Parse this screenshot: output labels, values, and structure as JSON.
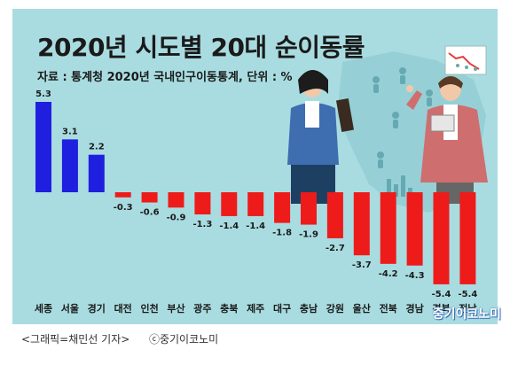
{
  "header": {
    "title": "2020년 시도별 20대 순이동률",
    "subtitle": "자료 : 통계청 2020년 국내인구이동통계, 단위 : %"
  },
  "colors": {
    "background": "#a9dce0",
    "positive": "#1f1fe0",
    "negative": "#ee1b1b"
  },
  "chart_data": {
    "type": "bar",
    "title": "2020년 시도별 20대 순이동률",
    "subtitle": "자료 : 통계청 2020년 국내인구이동통계, 단위 : %",
    "categories": [
      "세종",
      "서울",
      "경기",
      "대전",
      "인천",
      "부산",
      "광주",
      "충북",
      "제주",
      "대구",
      "충남",
      "강원",
      "울산",
      "전북",
      "경남",
      "경북",
      "전남"
    ],
    "values": [
      5.3,
      3.1,
      2.2,
      -0.3,
      -0.6,
      -0.9,
      -1.3,
      -1.4,
      -1.4,
      -1.8,
      -1.9,
      -2.7,
      -3.7,
      -4.2,
      -4.3,
      -5.4,
      -5.4
    ],
    "value_labels": [
      "5.3",
      "3.1",
      "2.2",
      "-0.3",
      "-0.6",
      "-0.9",
      "-1.3",
      "-1.4",
      "-1.4",
      "-1.8",
      "-1.9",
      "-2.7",
      "-3.7",
      "-4.2",
      "-4.3",
      "-5.4",
      "-5.4"
    ],
    "xlabel": "",
    "ylabel": "",
    "ylim": [
      -5.4,
      5.3
    ],
    "grid": false,
    "legend": "none"
  },
  "watermark": "중기이코노미",
  "footer": {
    "credit": "<그래픽=채민선 기자>",
    "copyright": "ⓒ중기이코노미"
  }
}
